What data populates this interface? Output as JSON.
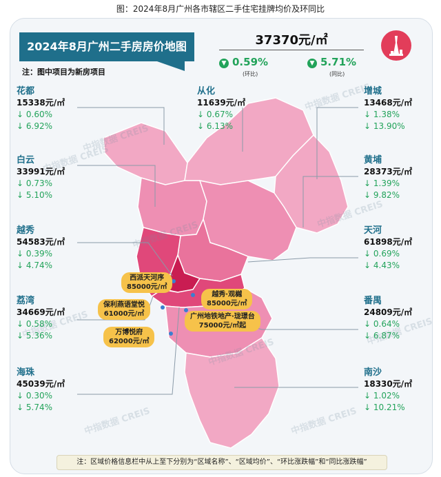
{
  "caption": "图：2024年8月广州各市辖区二手住宅挂牌均价及环同比",
  "banner_title": "2024年8月广州二手房房价地图",
  "note_top": "注：图中项目为新房项目",
  "overall": {
    "price": "37370元/㎡",
    "mom": "0.59%",
    "mom_label": "(环比)",
    "yoy": "5.71%",
    "yoy_label": "(同比)"
  },
  "colors": {
    "accent": "#1f6f8b",
    "down": "#22a35a",
    "map_light": "#f2a8c4",
    "map_mid": "#e9739c",
    "map_dark": "#d92c62",
    "tag": "#f6c24a"
  },
  "districts": [
    {
      "name": "花都",
      "price": "15338元/㎡",
      "mom": "↓ 0.60%",
      "yoy": "↓ 6.92%"
    },
    {
      "name": "白云",
      "price": "33991元/㎡",
      "mom": "↓ 0.73%",
      "yoy": "↓ 5.10%"
    },
    {
      "name": "越秀",
      "price": "54583元/㎡",
      "mom": "↓ 0.39%",
      "yoy": "↓ 4.74%"
    },
    {
      "name": "荔湾",
      "price": "34669元/㎡",
      "mom": "↓ 0.58%",
      "yoy": "↓ 5.36%"
    },
    {
      "name": "海珠",
      "price": "45039元/㎡",
      "mom": "↓ 0.30%",
      "yoy": "↓ 5.74%"
    },
    {
      "name": "从化",
      "price": "11639元/㎡",
      "mom": "↓ 0.67%",
      "yoy": "↓ 6.13%"
    },
    {
      "name": "增城",
      "price": "13468元/㎡",
      "mom": "↓ 1.38%",
      "yoy": "↓ 13.90%"
    },
    {
      "name": "黄埔",
      "price": "28373元/㎡",
      "mom": "↓ 1.39%",
      "yoy": "↓ 9.82%"
    },
    {
      "name": "天河",
      "price": "61898元/㎡",
      "mom": "↓ 0.69%",
      "yoy": "↓ 4.43%"
    },
    {
      "name": "番禺",
      "price": "24809元/㎡",
      "mom": "↓ 0.64%",
      "yoy": "↓ 6.87%"
    },
    {
      "name": "南沙",
      "price": "18330元/㎡",
      "mom": "↓ 1.02%",
      "yoy": "↓ 10.21%"
    }
  ],
  "projects": [
    {
      "name": "西派天河序",
      "price": "85000元/㎡"
    },
    {
      "name": "越秀·观樾",
      "price": "85000元/㎡"
    },
    {
      "name": "保利燕语堂悦",
      "price": "61000元/㎡"
    },
    {
      "name": "广州地铁地产·珑璟台",
      "price": "75000元/㎡起"
    },
    {
      "name": "万博悦府",
      "price": "62000元/㎡"
    }
  ],
  "watermark": "中指数据 CREIS",
  "bottom_note": "注：区域价格信息栏中从上至下分别为“区域名称”、“区域均价”、“环比涨跌幅”和“同比涨跌幅”"
}
